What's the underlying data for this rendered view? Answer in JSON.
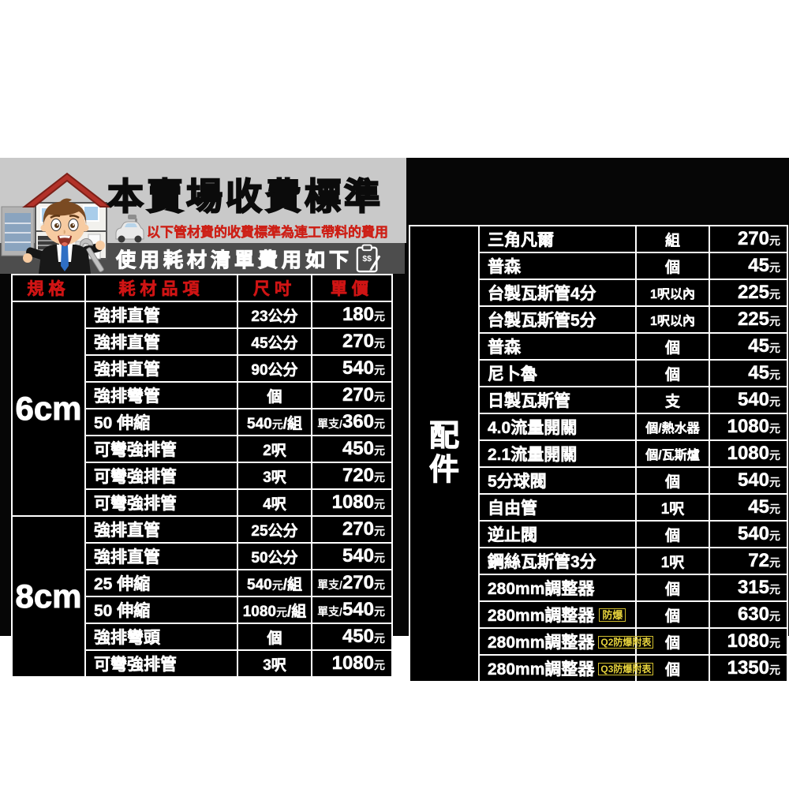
{
  "page": {
    "background": "#ffffff",
    "panel_background": "#000000"
  },
  "header": {
    "title": "本賣場收費標準",
    "subtitle": "以下管材費的收費標準為連工帶料的費用",
    "band_text": "使用耗材清單費用如下",
    "clipboard_icon": "clipboard-dollar-pencil",
    "colors": {
      "header_bg": "#c9c9c9",
      "band_bg": "#4d4d4d",
      "title": "#0b0b0b",
      "subtitle_red": "#cd2017",
      "band_text": "#ffffff"
    }
  },
  "left_table": {
    "headers": [
      "規格",
      "耗材品項",
      "尺吋",
      "單價"
    ],
    "header_color": "#cf1414",
    "groups": [
      {
        "spec": "6cm",
        "rows": [
          [
            "強排直管",
            "23公分",
            "180元"
          ],
          [
            "強排直管",
            "45公分",
            "270元"
          ],
          [
            "強排直管",
            "90公分",
            "540元"
          ],
          [
            "強排彎管",
            "個",
            "270元"
          ],
          [
            "50 伸縮",
            "540元/組",
            "單支/360元"
          ],
          [
            "可彎強排管",
            "2呎",
            "450元"
          ],
          [
            "可彎強排管",
            "3呎",
            "720元"
          ],
          [
            "可彎強排管",
            "4呎",
            "1080元"
          ]
        ]
      },
      {
        "spec": "8cm",
        "rows": [
          [
            "強排直管",
            "25公分",
            "270元"
          ],
          [
            "強排直管",
            "50公分",
            "540元"
          ],
          [
            "25 伸縮",
            "540元/組",
            "單支/270元"
          ],
          [
            "50 伸縮",
            "1080元/組",
            "單支/540元"
          ],
          [
            "強排彎頭",
            "個",
            "450元"
          ],
          [
            "可彎強排管",
            "3呎",
            "1080元"
          ]
        ]
      }
    ]
  },
  "right_table": {
    "label": "配件",
    "badge_color": "#e8d43c",
    "rows": [
      {
        "item": "三角凡爾",
        "badge": "",
        "unit": "組",
        "price": "270元"
      },
      {
        "item": "普森",
        "badge": "",
        "unit": "個",
        "price": "45元"
      },
      {
        "item": "台製瓦斯管4分",
        "badge": "",
        "unit": "1呎以內",
        "price": "225元"
      },
      {
        "item": "台製瓦斯管5分",
        "badge": "",
        "unit": "1呎以內",
        "price": "225元"
      },
      {
        "item": "普森",
        "badge": "",
        "unit": "個",
        "price": "45元"
      },
      {
        "item": "尼卜魯",
        "badge": "",
        "unit": "個",
        "price": "45元"
      },
      {
        "item": "日製瓦斯管",
        "badge": "",
        "unit": "支",
        "price": "540元"
      },
      {
        "item": "4.0流量開關",
        "badge": "",
        "unit": "個/熱水器",
        "price": "1080元"
      },
      {
        "item": "2.1流量開關",
        "badge": "",
        "unit": "個/瓦斯爐",
        "price": "1080元"
      },
      {
        "item": "5分球閥",
        "badge": "",
        "unit": "個",
        "price": "540元"
      },
      {
        "item": "自由管",
        "badge": "",
        "unit": "1呎",
        "price": "45元"
      },
      {
        "item": "逆止閥",
        "badge": "",
        "unit": "個",
        "price": "540元"
      },
      {
        "item": "鋼絲瓦斯管3分",
        "badge": "",
        "unit": "1呎",
        "price": "72元"
      },
      {
        "item": "280mm調整器",
        "badge": "",
        "unit": "個",
        "price": "315元"
      },
      {
        "item": "280mm調整器",
        "badge": "防爆",
        "unit": "個",
        "price": "630元"
      },
      {
        "item": "280mm調整器",
        "badge": "Q2防爆附表",
        "unit": "個",
        "price": "1080元"
      },
      {
        "item": "280mm調整器",
        "badge": "Q3防爆附表",
        "unit": "個",
        "price": "1350元"
      }
    ]
  }
}
